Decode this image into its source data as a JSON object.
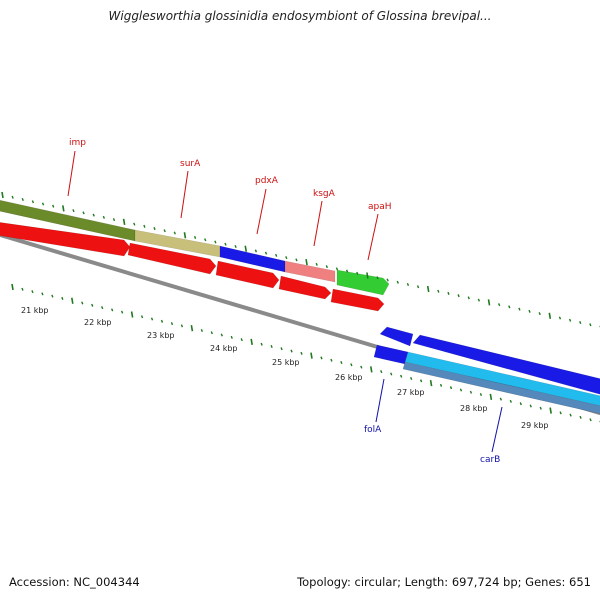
{
  "title": "Wigglesworthia glossinidia endosymbiont of Glossina brevipal...",
  "accession": "Accession: NC_004344",
  "summary": "Topology: circular; Length: 697,724 bp; Genes: 651",
  "colors": {
    "backbone": "#8a8a8a",
    "tick": "#1f7a1f",
    "scale_label": "#222222",
    "gene_label_red": "#cc1111",
    "gene_label_blue": "#1111aa"
  },
  "scale_labels": [
    "21 kbp",
    "22 kbp",
    "23 kbp",
    "24 kbp",
    "25 kbp",
    "26 kbp",
    "27 kbp",
    "28 kbp",
    "29 kbp"
  ],
  "gene_labels": [
    {
      "name": "imp",
      "color": "#cc1111"
    },
    {
      "name": "surA",
      "color": "#cc1111"
    },
    {
      "name": "pdxA",
      "color": "#cc1111"
    },
    {
      "name": "ksgA",
      "color": "#cc1111"
    },
    {
      "name": "apaH",
      "color": "#cc1111"
    },
    {
      "name": "folA",
      "color": "#1111aa"
    },
    {
      "name": "carB",
      "color": "#1111aa"
    }
  ],
  "tracks": {
    "top": [
      {
        "color": "#6b8a2a",
        "arrow": "none"
      },
      {
        "color": "#c8c07a",
        "arrow": "none"
      },
      {
        "color": "#1a1ae6",
        "arrow": "none"
      },
      {
        "color": "#f08080",
        "arrow": "none"
      },
      {
        "color": "#33cc33",
        "arrow": "right"
      }
    ],
    "middle": [
      {
        "color": "#ee1111",
        "arrow": "right"
      },
      {
        "color": "#ee1111",
        "arrow": "right"
      },
      {
        "color": "#ee1111",
        "arrow": "right"
      },
      {
        "color": "#ee1111",
        "arrow": "right"
      },
      {
        "color": "#ee1111",
        "arrow": "right"
      },
      {
        "color": "#1a1ae6",
        "arrow": "left"
      },
      {
        "color": "#1a1ae6",
        "arrow": "left"
      }
    ],
    "bottom": [
      {
        "color": "#1a1ae6",
        "arrow": "none"
      },
      {
        "color": "#22bbee",
        "arrow": "none"
      },
      {
        "color": "#5588bb",
        "arrow": "none"
      }
    ]
  }
}
